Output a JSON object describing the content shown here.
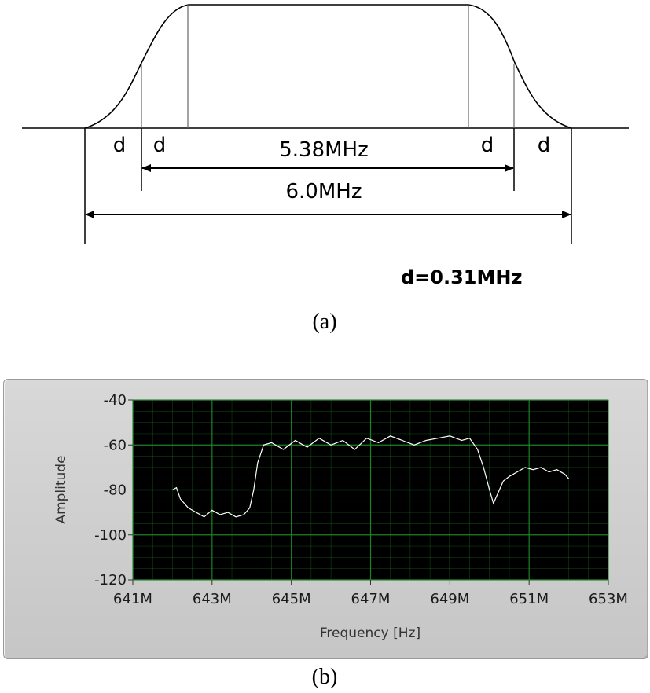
{
  "figure_a": {
    "bandwidth_outer_label": "6.0MHz",
    "bandwidth_inner_label": "5.38MHz",
    "d_labels": [
      "d",
      "d",
      "d",
      "d"
    ],
    "note": "d=0.31MHz",
    "caption": "(a)"
  },
  "chart_data": {
    "type": "line",
    "title": "",
    "xlabel": "Frequency [Hz]",
    "ylabel": "Amplitude",
    "xlim": [
      641,
      653
    ],
    "ylim": [
      -120,
      -40
    ],
    "x_ticks": [
      "641M",
      "643M",
      "645M",
      "647M",
      "649M",
      "651M",
      "653M"
    ],
    "y_ticks": [
      "-40",
      "-60",
      "-80",
      "-100",
      "-120"
    ],
    "grid": true,
    "colors": {
      "plot_bg": "#000000",
      "grid": "#1f8f2a",
      "trace": "#ffffff",
      "frame": "#c8c8c8"
    },
    "series": [
      {
        "x_unit": "MHz",
        "x": [
          642.0,
          642.1,
          642.2,
          642.4,
          642.6,
          642.8,
          643.0,
          643.2,
          643.4,
          643.6,
          643.8,
          643.95,
          644.05,
          644.15,
          644.3,
          644.5,
          644.8,
          645.1,
          645.4,
          645.7,
          646.0,
          646.3,
          646.6,
          646.9,
          647.2,
          647.5,
          647.8,
          648.1,
          648.4,
          648.7,
          649.0,
          649.3,
          649.5,
          649.7,
          649.85,
          650.0,
          650.1,
          650.2,
          650.35,
          650.5,
          650.7,
          650.9,
          651.1,
          651.3,
          651.5,
          651.7,
          651.9,
          652.0
        ],
        "values": [
          -80,
          -79,
          -84,
          -88,
          -90,
          -92,
          -89,
          -91,
          -90,
          -92,
          -91,
          -88,
          -80,
          -68,
          -60,
          -59,
          -62,
          -58,
          -61,
          -57,
          -60,
          -58,
          -62,
          -57,
          -59,
          -56,
          -58,
          -60,
          -58,
          -57,
          -56,
          -58,
          -57,
          -62,
          -70,
          -80,
          -86,
          -82,
          -76,
          -74,
          -72,
          -70,
          -71,
          -70,
          -72,
          -71,
          -73,
          -75
        ]
      }
    ]
  },
  "figure_b": {
    "caption": "(b)"
  }
}
